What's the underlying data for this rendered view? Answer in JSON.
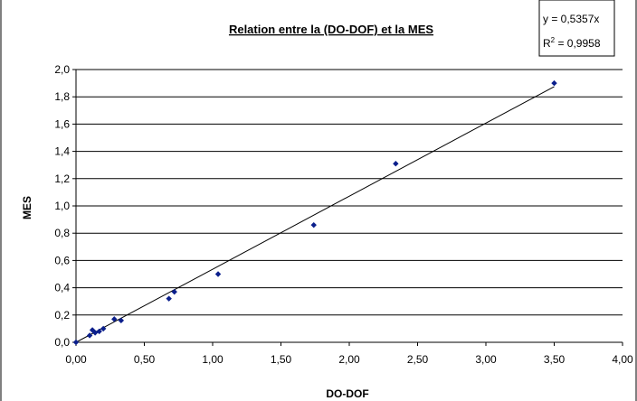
{
  "chart_data": {
    "type": "scatter",
    "title": "Relation entre la (DO-DOF) et la MES",
    "xlabel": "DO-DOF",
    "ylabel": "MES",
    "xlim": [
      0,
      4
    ],
    "ylim": [
      0,
      2
    ],
    "x_ticks": [
      "0,00",
      "0,50",
      "1,00",
      "1,50",
      "2,00",
      "2,50",
      "3,00",
      "3,50",
      "4,00"
    ],
    "y_ticks": [
      "0,0",
      "0,2",
      "0,4",
      "0,6",
      "0,8",
      "1,0",
      "1,2",
      "1,4",
      "1,6",
      "1,8",
      "2,0"
    ],
    "grid": "horizontal",
    "marker_color": "#0b1f8c",
    "points": [
      {
        "x": 0.0,
        "y": 0.0
      },
      {
        "x": 0.1,
        "y": 0.05
      },
      {
        "x": 0.12,
        "y": 0.09
      },
      {
        "x": 0.14,
        "y": 0.07
      },
      {
        "x": 0.17,
        "y": 0.08
      },
      {
        "x": 0.2,
        "y": 0.1
      },
      {
        "x": 0.28,
        "y": 0.17
      },
      {
        "x": 0.33,
        "y": 0.16
      },
      {
        "x": 0.68,
        "y": 0.32
      },
      {
        "x": 0.72,
        "y": 0.37
      },
      {
        "x": 1.04,
        "y": 0.5
      },
      {
        "x": 1.74,
        "y": 0.86
      },
      {
        "x": 2.34,
        "y": 1.31
      },
      {
        "x": 3.5,
        "y": 1.9
      }
    ],
    "trendline": {
      "slope": 0.5357,
      "x_range": [
        0,
        3.5
      ],
      "equation_label": "y = 0,5357x",
      "r2_prefix": "R",
      "r2_superscript": "2",
      "r2_value": " = 0,9958"
    }
  }
}
